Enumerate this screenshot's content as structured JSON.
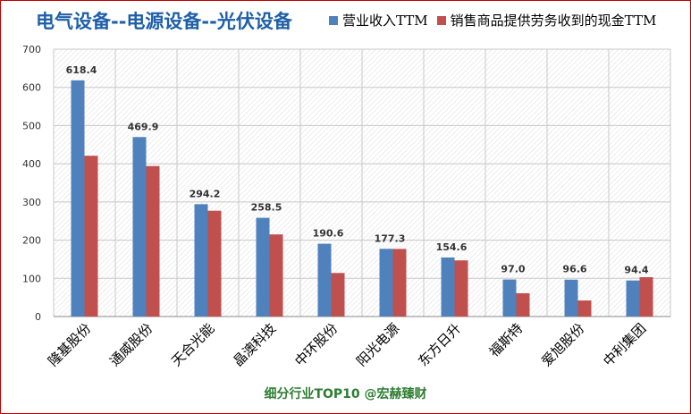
{
  "title": "电气设备--电源设备--光伏设备",
  "footer": "细分行业TOP10 @宏赫臻财",
  "chart_data": {
    "type": "bar",
    "categories": [
      "隆基股份",
      "通威股份",
      "天合光能",
      "晶澳科技",
      "中环股份",
      "阳光电源",
      "东方日升",
      "福斯特",
      "爱旭股份",
      "中利集团"
    ],
    "series": [
      {
        "name": "营业收入TTM",
        "color": "#4f81bd",
        "values": [
          618.4,
          469.9,
          294.2,
          258.5,
          190.6,
          177.3,
          154.6,
          97.0,
          96.6,
          94.4
        ]
      },
      {
        "name": "销售商品提供劳务收到的现金TTM",
        "color": "#c0504d",
        "values": [
          421,
          394,
          277,
          215,
          114,
          177,
          147,
          61,
          42,
          103
        ]
      }
    ],
    "data_labels": [
      "618.4",
      "469.9",
      "294.2",
      "258.5",
      "190.6",
      "177.3",
      "154.6",
      "97.0",
      "96.6",
      "94.4"
    ],
    "ylim": [
      0,
      700
    ],
    "yticks": [
      0,
      100,
      200,
      300,
      400,
      500,
      600,
      700
    ],
    "grid": true,
    "legend_position": "top-right"
  }
}
